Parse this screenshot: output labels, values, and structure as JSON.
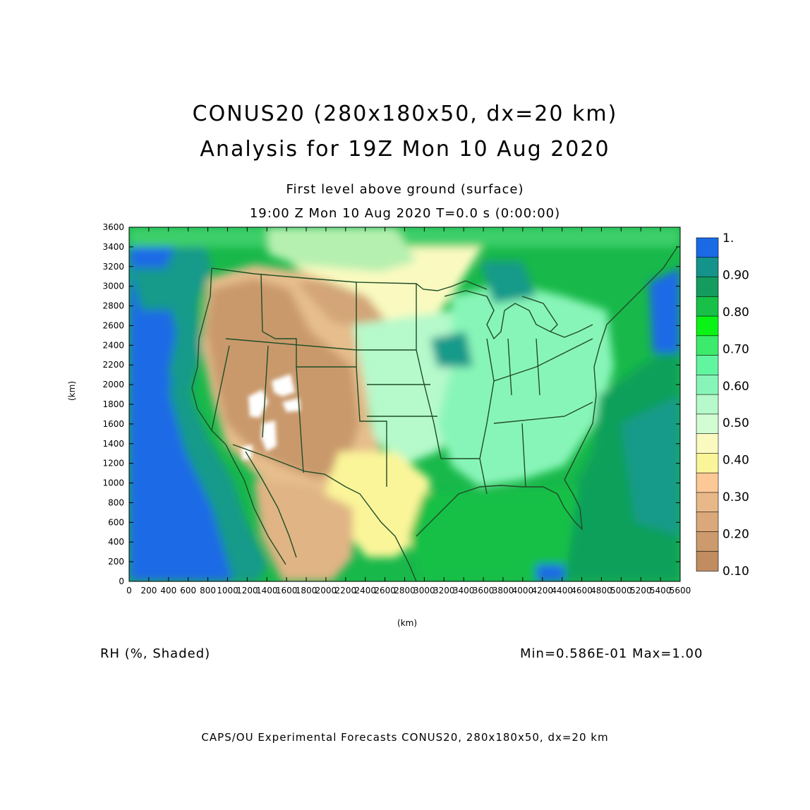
{
  "header": {
    "title_line1": "CONUS20 (280x180x50, dx=20 km)",
    "title_line2": "Analysis for 19Z Mon 10 Aug 2020",
    "level": "First level above ground (surface)",
    "time": "19:00 Z Mon 10 Aug 2020    T=0.0 s (0:00:00)"
  },
  "axes": {
    "xlabel": "(km)",
    "ylabel": "(km)",
    "xticks": [
      "0",
      "200",
      "400",
      "600",
      "800",
      "1000",
      "1200",
      "1400",
      "1600",
      "1800",
      "2000",
      "2200",
      "2400",
      "2600",
      "2800",
      "3000",
      "3200",
      "3400",
      "3600",
      "3800",
      "4000",
      "4200",
      "4400",
      "4600",
      "4800",
      "5000",
      "5200",
      "5400",
      "5600"
    ],
    "yticks": [
      "0",
      "200",
      "400",
      "600",
      "800",
      "1000",
      "1200",
      "1400",
      "1600",
      "1800",
      "2000",
      "2200",
      "2400",
      "2600",
      "2800",
      "3000",
      "3200",
      "3400",
      "3600"
    ],
    "xlim": [
      0,
      5600
    ],
    "ylim": [
      0,
      3600
    ]
  },
  "colorbar": {
    "labels": [
      "1.",
      "0.90",
      "0.80",
      "0.70",
      "0.60",
      "0.50",
      "0.40",
      "0.30",
      "0.20",
      "0.10"
    ],
    "colors": [
      "#1a6ae6",
      "#14938a",
      "#139c5e",
      "#18c048",
      "#0bf316",
      "#3ceb6c",
      "#62f5a0",
      "#88f5b8",
      "#b6f9cb",
      "#d2fdd2",
      "#fafac0",
      "#fbf59a",
      "#fcc896",
      "#e8b888",
      "#daa87a",
      "#cc9a6c",
      "#c08c60"
    ]
  },
  "footer": {
    "field": "RH (%, Shaded)",
    "minmax": "Min=0.586E-01 Max=1.00",
    "credit": "CAPS/OU Experimental Forecasts   CONUS20, 280x180x50, dx=20 km"
  }
}
